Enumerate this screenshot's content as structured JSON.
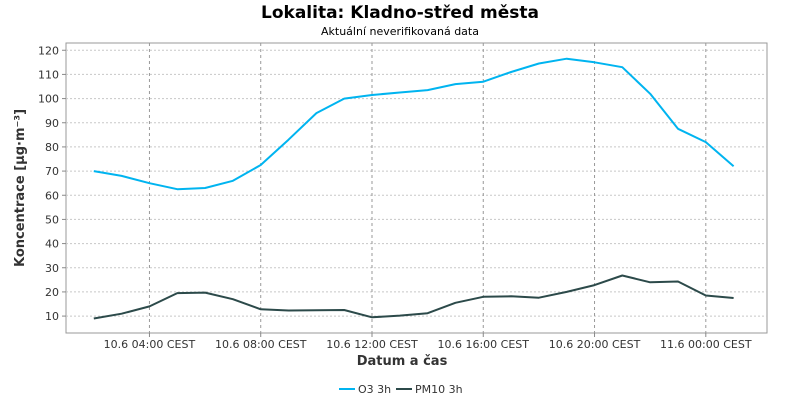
{
  "chart_data": {
    "type": "line",
    "title": "Lokalita: Kladno-střed města",
    "subtitle": "Aktuální neverifikovaná data",
    "xlabel": "Datum a čas",
    "ylabel": "Koncentrace [µg·m⁻³]",
    "x_ticks": [
      "10.6 04:00 CEST",
      "10.6 08:00 CEST",
      "10.6 12:00 CEST",
      "10.6 16:00 CEST",
      "10.6 20:00 CEST",
      "11.6 00:00 CEST"
    ],
    "y_ticks": [
      10,
      20,
      30,
      40,
      50,
      60,
      70,
      80,
      90,
      100,
      110,
      120
    ],
    "ylim": [
      3,
      123
    ],
    "x_hours": [
      2,
      3,
      4,
      5,
      6,
      7,
      8,
      9,
      10,
      11,
      12,
      13,
      14,
      15,
      16,
      17,
      18,
      19,
      20,
      21,
      22,
      23,
      24,
      25
    ],
    "x_range_hours": [
      1,
      26.2
    ],
    "grid": true,
    "legend_position": "bottom",
    "series": [
      {
        "name": "O3 3h",
        "color": "#00b4f0",
        "values": [
          70,
          68,
          65,
          62.5,
          63,
          66,
          72.5,
          83,
          94,
          100,
          101.5,
          102.5,
          103.5,
          106,
          107,
          111,
          114.5,
          116.5,
          115,
          113,
          102,
          87.5,
          82,
          72
        ]
      },
      {
        "name": "PM10 3h",
        "color": "#2c4a4a",
        "values": [
          9,
          11,
          14,
          19.5,
          19.7,
          17,
          12.8,
          12.3,
          12.4,
          12.5,
          9.5,
          10.2,
          11.2,
          15.5,
          18,
          18.2,
          17.6,
          20,
          22.8,
          26.8,
          24,
          24.3,
          18.5,
          17.5
        ]
      }
    ]
  }
}
